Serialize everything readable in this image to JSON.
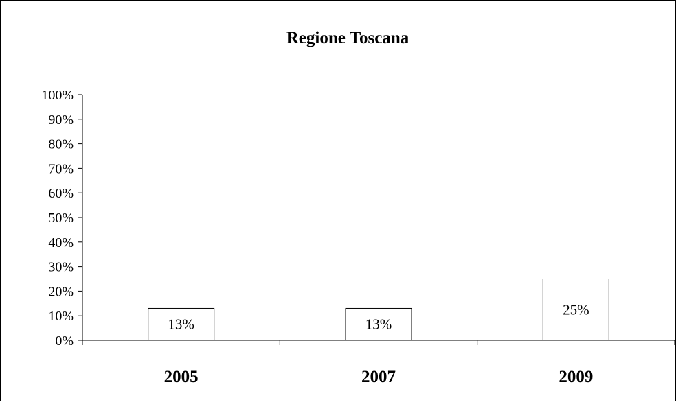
{
  "chart_data": {
    "type": "bar",
    "title": "Regione Toscana",
    "categories": [
      "2005",
      "2007",
      "2009"
    ],
    "values": [
      13,
      13,
      25
    ],
    "data_labels": [
      "13%",
      "13%",
      "25%"
    ],
    "ylim": [
      0,
      100
    ],
    "y_ticks": [
      "0%",
      "10%",
      "20%",
      "30%",
      "40%",
      "50%",
      "60%",
      "70%",
      "80%",
      "90%",
      "100%"
    ],
    "xlabel": "",
    "ylabel": "",
    "grid": false,
    "legend": "none",
    "bar_color": "#ffffff",
    "bar_edge_color": "#000000"
  }
}
